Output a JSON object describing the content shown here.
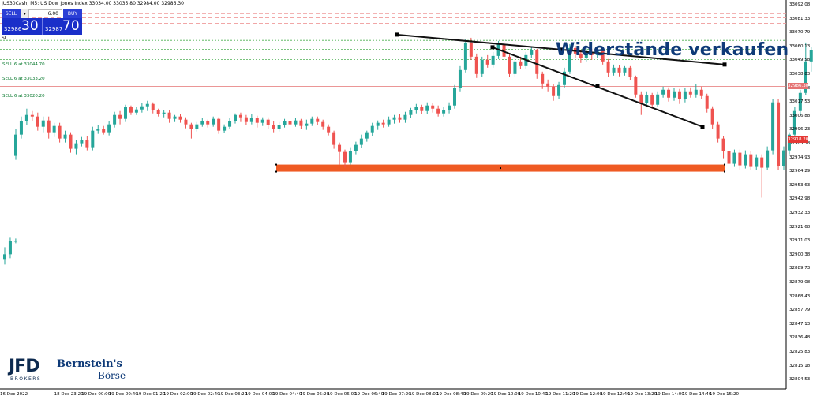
{
  "header": {
    "title": "JUS30Cash, M5: US Dow Jones Index 33034.00 33035.80 32984.00 32986.30"
  },
  "trade_panel": {
    "sell_label": "SELL",
    "buy_label": "BUY",
    "lot_value": "6.00",
    "dropdown_glyph": "▾",
    "sell_price_small": "32986",
    "sell_price_large": "30",
    "buy_price_small": "32987",
    "buy_price_large": "70",
    "sl_label": "SL"
  },
  "orders": [
    {
      "label": "SELL 6 at 33044.70",
      "price": 33044.7
    },
    {
      "label": "SELL 6 at 33033.20",
      "price": 33033.2
    },
    {
      "label": "SELL 6 at 33020.20",
      "price": 33020.2
    }
  ],
  "annotation": "Widerstände verkaufen",
  "logos": {
    "jfd_main": "JFD",
    "jfd_sub": "BROKERS",
    "bb_line1": "Bernstein's",
    "bb_line2": "Börse"
  },
  "colors": {
    "up": "#26a69a",
    "down": "#ef5350",
    "support_zone": "#ef5a23",
    "trendline": "#111111",
    "price_line": "#e57373",
    "order_line": "#4caf50",
    "headline": "#0e3a78",
    "bid_label": "#e57373",
    "ref_label": "#e53935"
  },
  "chart_data": {
    "type": "candlestick",
    "symbol": "JUS30Cash",
    "timeframe": "M5",
    "ylim": [
      32602,
      33096
    ],
    "y_ticks": [
      "33092.08",
      "33081.33",
      "33070.79",
      "33060.13",
      "33049.58",
      "33038.83",
      "33028.18",
      "33017.53",
      "33006.88",
      "32996.23",
      "32985.58",
      "32974.93",
      "32964.29",
      "32953.63",
      "32942.98",
      "32932.33",
      "32921.68",
      "32911.03",
      "32900.38",
      "32889.73",
      "32879.08",
      "32868.43",
      "32857.79",
      "32847.13",
      "32836.48",
      "32825.83",
      "32815.18",
      "32804.53"
    ],
    "x_ticks": [
      "16 Dec 2022",
      "18 Dec 23:20",
      "19 Dec 00:00",
      "19 Dec 00:40",
      "19 Dec 01:20",
      "19 Dec 02:00",
      "19 Dec 02:40",
      "19 Dec 03:20",
      "19 Dec 04:00",
      "19 Dec 04:40",
      "19 Dec 05:20",
      "19 Dec 06:00",
      "19 Dec 06:40",
      "19 Dec 07:20",
      "19 Dec 08:00",
      "19 Dec 08:40",
      "19 Dec 09:20",
      "19 Dec 10:00",
      "19 Dec 10:40",
      "19 Dec 11:20",
      "19 Dec 12:00",
      "19 Dec 12:40",
      "19 Dec 13:20",
      "19 Dec 14:00",
      "19 Dec 14:40",
      "19 Dec 15:20"
    ],
    "bid_price": 32986.3,
    "bid_label": "32986.30",
    "ref_price": 32918.2,
    "ref_label": "32918.20",
    "upper_dashed_lines": [
      33078.5,
      33073.5,
      33066.5
    ],
    "support_zone": {
      "low": 32878,
      "high": 32887,
      "x_start": 350,
      "x_end": 918
    },
    "trendlines": [
      {
        "name": "long",
        "points": [
          [
            503,
            33052
          ],
          [
            710,
            33033
          ],
          [
            918,
            33014
          ]
        ]
      },
      {
        "name": "short",
        "points": [
          [
            624,
            33036
          ],
          [
            757,
            32987
          ],
          [
            890,
            32935
          ]
        ]
      }
    ],
    "candles": [
      [
        32767,
        32773,
        32760,
        32782
      ],
      [
        32773,
        32790,
        32768,
        32794
      ],
      [
        32790,
        32790,
        32787,
        32793
      ],
      [
        32898,
        32925,
        32893,
        32932
      ],
      [
        32925,
        32942,
        32920,
        32948
      ],
      [
        32942,
        32950,
        32937,
        32958
      ],
      [
        32950,
        32948,
        32942,
        32955
      ],
      [
        32948,
        32935,
        32930,
        32953
      ],
      [
        32935,
        32943,
        32928,
        32948
      ],
      [
        32943,
        32928,
        32920,
        32948
      ],
      [
        32928,
        32936,
        32922,
        32940
      ],
      [
        32936,
        32920,
        32915,
        32940
      ],
      [
        32920,
        32925,
        32915,
        32930
      ],
      [
        32925,
        32907,
        32902,
        32928
      ],
      [
        32907,
        32914,
        32900,
        32918
      ],
      [
        32914,
        32918,
        32910,
        32922
      ],
      [
        32918,
        32909,
        32905,
        32923
      ],
      [
        32909,
        32930,
        32905,
        32935
      ],
      [
        32930,
        32932,
        32926,
        32937
      ],
      [
        32932,
        32928,
        32925,
        32936
      ],
      [
        32928,
        32938,
        32924,
        32942
      ],
      [
        32938,
        32950,
        32934,
        32954
      ],
      [
        32950,
        32945,
        32938,
        32955
      ],
      [
        32945,
        32960,
        32941,
        32963
      ],
      [
        32960,
        32953,
        32950,
        32962
      ],
      [
        32953,
        32957,
        32950,
        32960
      ],
      [
        32957,
        32961,
        32953,
        32965
      ],
      [
        32961,
        32964,
        32955,
        32968
      ],
      [
        32964,
        32956,
        32952,
        32966
      ],
      [
        32956,
        32951,
        32948,
        32958
      ],
      [
        32951,
        32953,
        32947,
        32956
      ],
      [
        32953,
        32945,
        32940,
        32956
      ],
      [
        32945,
        32948,
        32941,
        32950
      ],
      [
        32948,
        32944,
        32940,
        32951
      ],
      [
        32944,
        32938,
        32933,
        32947
      ],
      [
        32938,
        32932,
        32920,
        32940
      ],
      [
        32932,
        32938,
        32929,
        32941
      ],
      [
        32938,
        32942,
        32935,
        32946
      ],
      [
        32942,
        32938,
        32934,
        32944
      ],
      [
        32938,
        32945,
        32935,
        32948
      ],
      [
        32945,
        32930,
        32926,
        32947
      ],
      [
        32930,
        32935,
        32927,
        32938
      ],
      [
        32935,
        32942,
        32932,
        32946
      ],
      [
        32942,
        32950,
        32939,
        32952
      ],
      [
        32950,
        32947,
        32941,
        32953
      ],
      [
        32947,
        32941,
        32937,
        32950
      ],
      [
        32941,
        32946,
        32938,
        32951
      ],
      [
        32946,
        32940,
        32934,
        32949
      ],
      [
        32940,
        32944,
        32936,
        32947
      ],
      [
        32944,
        32937,
        32932,
        32947
      ],
      [
        32937,
        32932,
        32928,
        32942
      ],
      [
        32932,
        32937,
        32929,
        32941
      ],
      [
        32937,
        32942,
        32934,
        32945
      ],
      [
        32942,
        32938,
        32934,
        32945
      ],
      [
        32938,
        32943,
        32935,
        32946
      ],
      [
        32943,
        32936,
        32932,
        32945
      ],
      [
        32936,
        32939,
        32931,
        32944
      ],
      [
        32939,
        32945,
        32936,
        32948
      ],
      [
        32945,
        32941,
        32937,
        32948
      ],
      [
        32941,
        32935,
        32931,
        32944
      ],
      [
        32935,
        32928,
        32924,
        32938
      ],
      [
        32928,
        32912,
        32907,
        32930
      ],
      [
        32912,
        32903,
        32887,
        32915
      ],
      [
        32903,
        32890,
        32883,
        32906
      ],
      [
        32890,
        32904,
        32887,
        32909
      ],
      [
        32904,
        32912,
        32900,
        32916
      ],
      [
        32912,
        32920,
        32908,
        32925
      ],
      [
        32920,
        32928,
        32916,
        32930
      ],
      [
        32928,
        32936,
        32923,
        32940
      ],
      [
        32936,
        32940,
        32931,
        32943
      ],
      [
        32940,
        32938,
        32934,
        32944
      ],
      [
        32938,
        32944,
        32935,
        32948
      ],
      [
        32944,
        32947,
        32939,
        32950
      ],
      [
        32947,
        32944,
        32940,
        32951
      ],
      [
        32944,
        32950,
        32940,
        32954
      ],
      [
        32950,
        32956,
        32946,
        32959
      ],
      [
        32956,
        32960,
        32952,
        32964
      ],
      [
        32960,
        32955,
        32951,
        32963
      ],
      [
        32955,
        32962,
        32951,
        32966
      ],
      [
        32962,
        32958,
        32953,
        32965
      ],
      [
        32958,
        32952,
        32948,
        32962
      ],
      [
        32952,
        32956,
        32948,
        32960
      ],
      [
        32956,
        32962,
        32952,
        32966
      ],
      [
        32962,
        32984,
        32958,
        32988
      ],
      [
        32984,
        33007,
        32980,
        33012
      ],
      [
        33007,
        33042,
        33004,
        33046
      ],
      [
        33042,
        33024,
        33020,
        33048
      ],
      [
        33024,
        33002,
        32997,
        33028
      ],
      [
        33002,
        33020,
        32998,
        33024
      ],
      [
        33020,
        33014,
        33010,
        33026
      ],
      [
        33014,
        33025,
        33010,
        33030
      ],
      [
        33025,
        33040,
        33021,
        33044
      ],
      [
        33040,
        33024,
        33020,
        33043
      ],
      [
        33024,
        33002,
        32998,
        33028
      ],
      [
        33002,
        33018,
        32998,
        33022
      ],
      [
        33018,
        33012,
        33008,
        33024
      ],
      [
        33012,
        33026,
        33008,
        33030
      ],
      [
        33026,
        33032,
        33022,
        33036
      ],
      [
        33032,
        33002,
        32996,
        33034
      ],
      [
        33002,
        32990,
        32983,
        33005
      ],
      [
        32990,
        32986,
        32980,
        32995
      ],
      [
        32986,
        32974,
        32968,
        32989
      ],
      [
        32974,
        32988,
        32970,
        32992
      ],
      [
        32988,
        33005,
        32984,
        33010
      ],
      [
        33005,
        33035,
        33002,
        33040
      ],
      [
        33035,
        33028,
        33022,
        33038
      ],
      [
        33028,
        33022,
        33016,
        33032
      ],
      [
        33022,
        33030,
        33018,
        33035
      ],
      [
        33030,
        33026,
        33020,
        33034
      ],
      [
        33026,
        33032,
        33022,
        33036
      ],
      [
        33032,
        33018,
        33014,
        33035
      ],
      [
        33018,
        33004,
        32998,
        33021
      ],
      [
        33004,
        33010,
        33000,
        33014
      ],
      [
        33010,
        33004,
        32999,
        33013
      ],
      [
        33004,
        33010,
        33000,
        33012
      ],
      [
        33010,
        32998,
        32994,
        33012
      ],
      [
        32998,
        32976,
        32972,
        33000
      ],
      [
        32976,
        32965,
        32950,
        32980
      ],
      [
        32965,
        32975,
        32962,
        32980
      ],
      [
        32975,
        32963,
        32958,
        32978
      ],
      [
        32963,
        32976,
        32960,
        32980
      ],
      [
        32976,
        32982,
        32972,
        32986
      ],
      [
        32982,
        32972,
        32967,
        32985
      ],
      [
        32972,
        32980,
        32968,
        32984
      ],
      [
        32980,
        32970,
        32964,
        32983
      ],
      [
        32970,
        32980,
        32966,
        32984
      ],
      [
        32980,
        32976,
        32972,
        32985
      ],
      [
        32976,
        32982,
        32972,
        32989
      ],
      [
        32982,
        32974,
        32970,
        32986
      ],
      [
        32974,
        32958,
        32953,
        32977
      ],
      [
        32958,
        32938,
        32932,
        32961
      ],
      [
        32938,
        32920,
        32915,
        32941
      ],
      [
        32920,
        32904,
        32895,
        32923
      ],
      [
        32904,
        32888,
        32882,
        32906
      ],
      [
        32888,
        32902,
        32884,
        32906
      ],
      [
        32902,
        32886,
        32880,
        32906
      ],
      [
        32886,
        32900,
        32882,
        32905
      ],
      [
        32900,
        32884,
        32880,
        32904
      ],
      [
        32884,
        32896,
        32880,
        32900
      ],
      [
        32896,
        32883,
        32845,
        32900
      ],
      [
        32883,
        32905,
        32880,
        32910
      ],
      [
        32905,
        32966,
        32900,
        32970
      ],
      [
        32966,
        32885,
        32880,
        32970
      ],
      [
        32885,
        32905,
        32880,
        32910
      ],
      [
        32905,
        32925,
        32900,
        32928
      ],
      [
        32925,
        32955,
        32920,
        32960
      ],
      [
        32955,
        32978,
        32950,
        32982
      ],
      [
        32978,
        33018,
        32975,
        33042
      ],
      [
        33018,
        33032,
        33005,
        33036
      ],
      [
        33032,
        32986,
        32982,
        33034
      ]
    ]
  }
}
